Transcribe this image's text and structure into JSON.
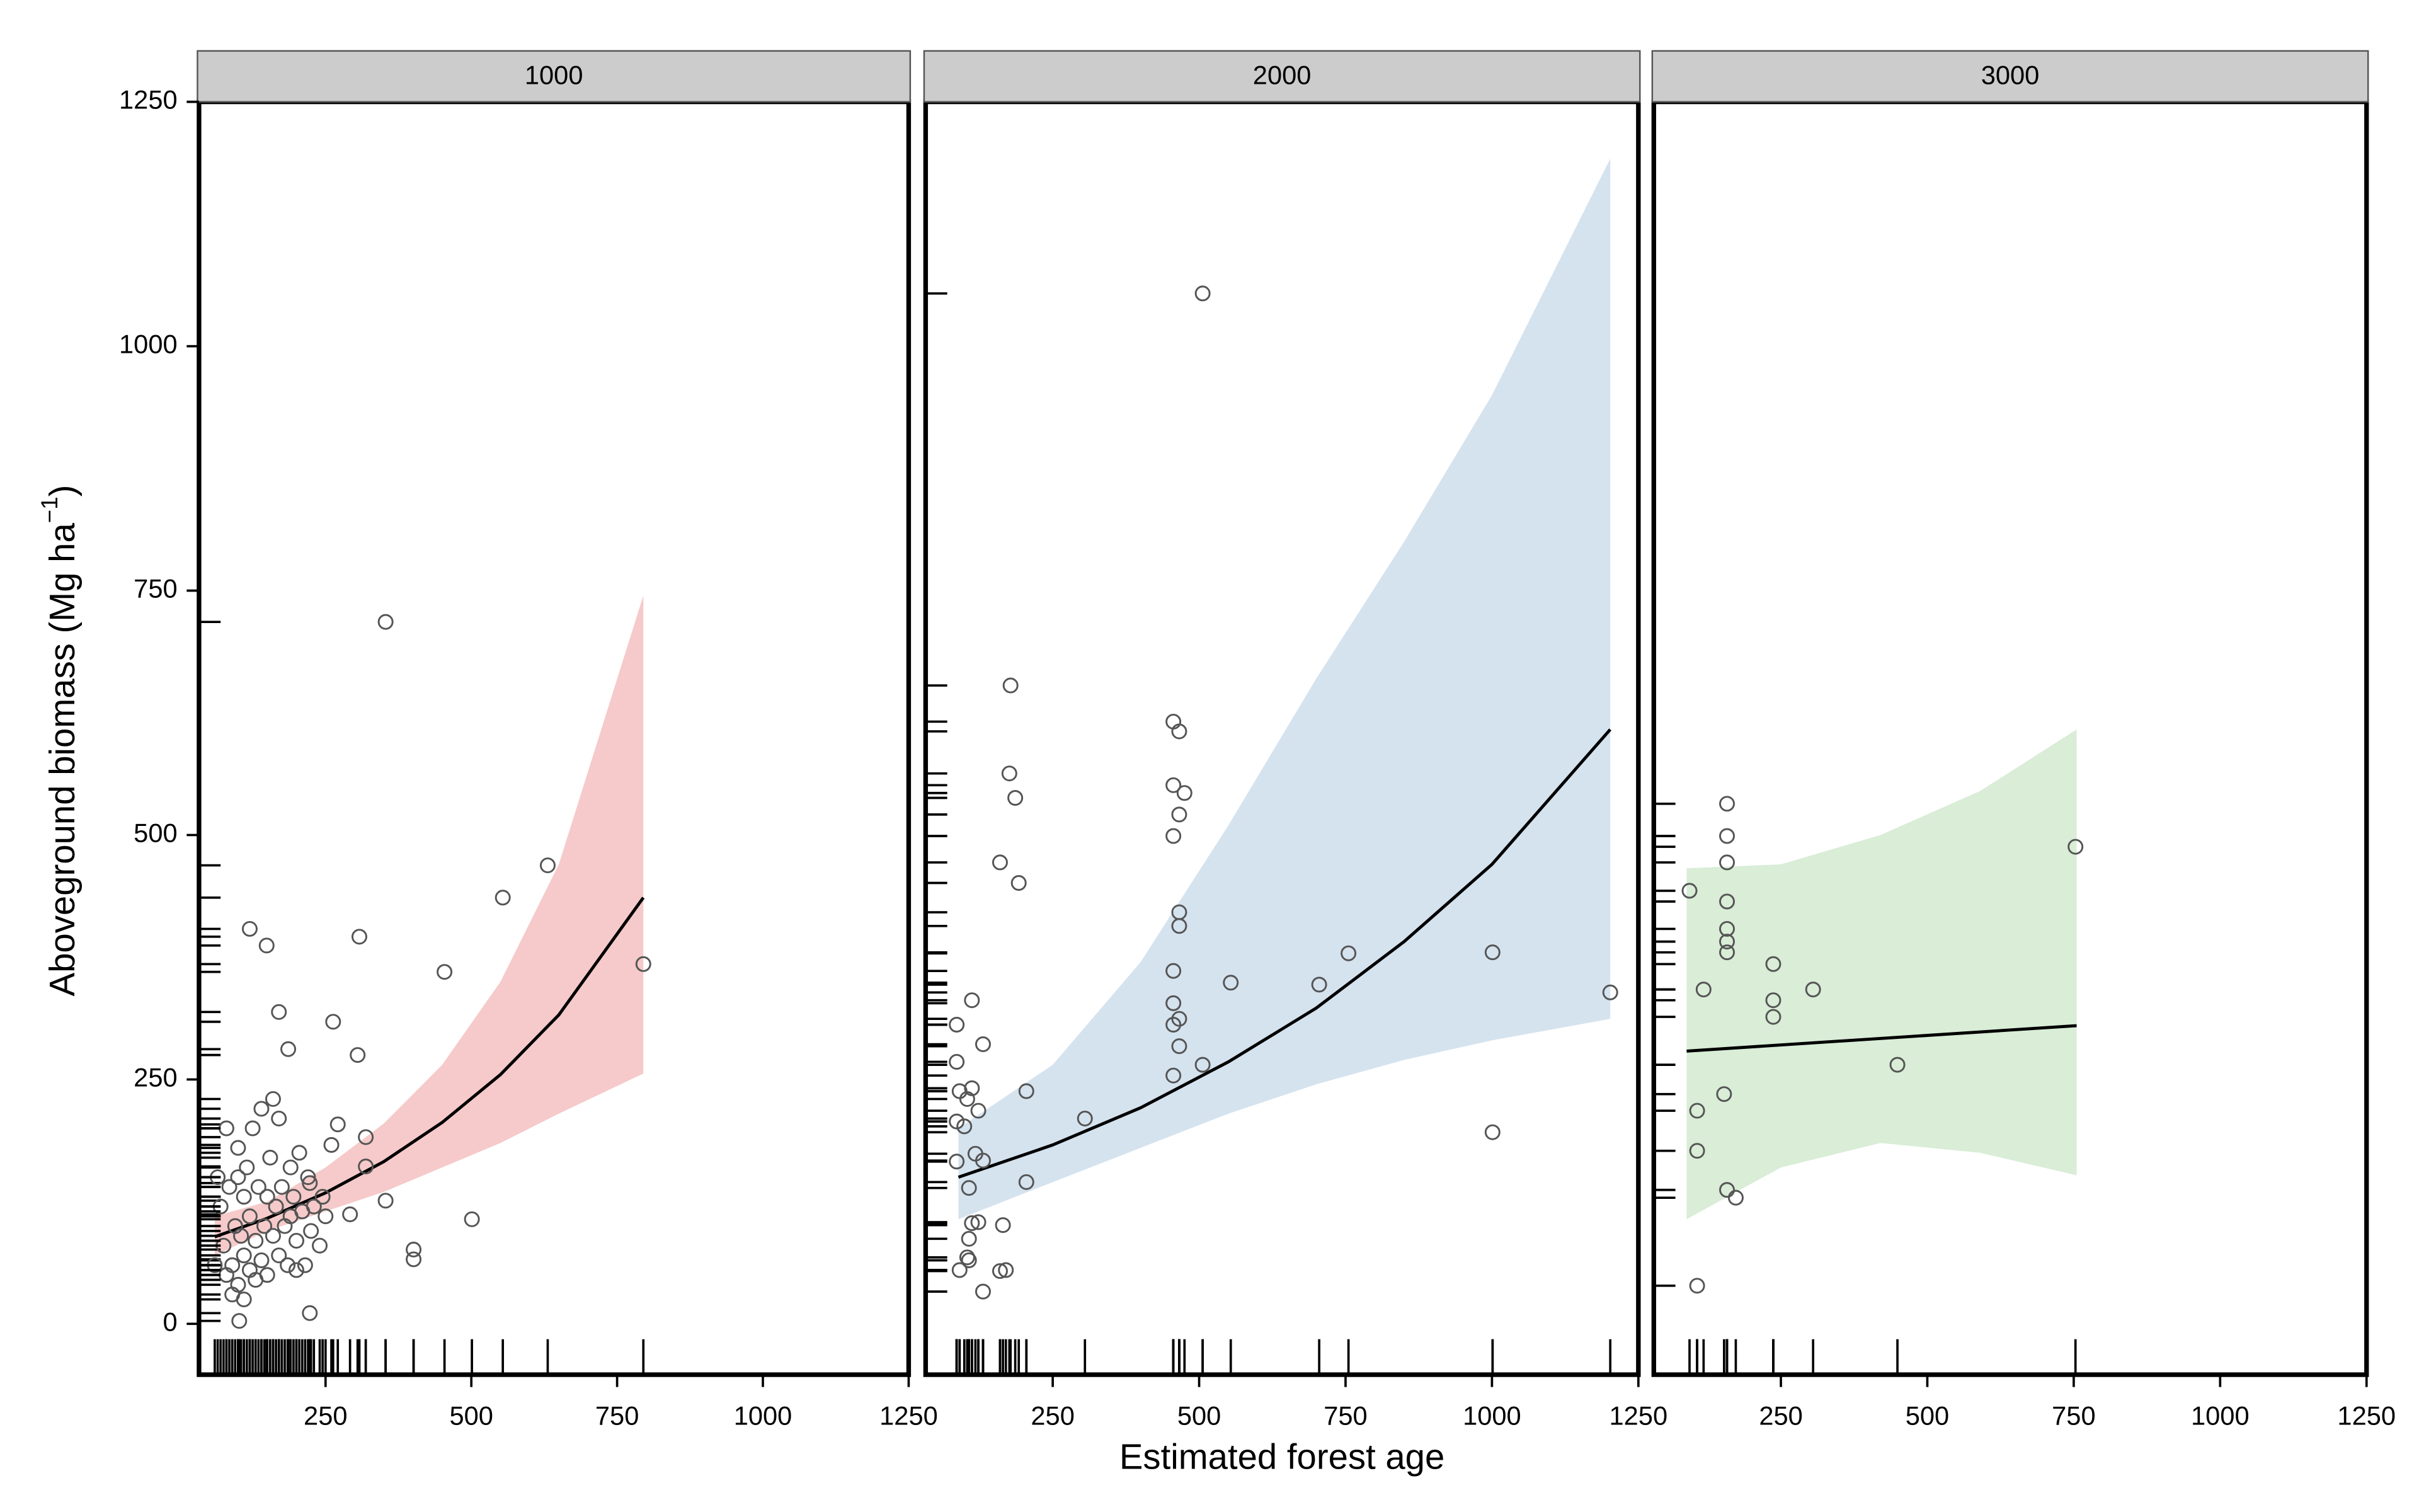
{
  "chart_data": {
    "type": "scatter",
    "x_label": "Estimated forest age",
    "y_label": "Aboveground biomass (Mg ha",
    "y_label_sup": "−1",
    "y_label_end": ")",
    "xlim": [
      33,
      1250
    ],
    "ylim": [
      -52,
      1250
    ],
    "xticks": [
      250,
      500,
      750,
      1000,
      1250
    ],
    "yticks": [
      0,
      250,
      500,
      750,
      1000,
      1250
    ],
    "rug": true,
    "point_color": "#555555",
    "line_color": "#000000",
    "panels": [
      {
        "title": "1000",
        "band_color": "#f6caca",
        "points": {
          "x": [
            353,
            631,
            554,
            795,
            308,
            454,
            120,
            149,
            170,
            263,
            305,
            186,
            501,
            401,
            401,
            353,
            319,
            319,
            292,
            271,
            260,
            223,
            223,
            102,
            70,
            75,
            80,
            85,
            90,
            95,
            100,
            100,
            105,
            110,
            110,
            115,
            120,
            120,
            125,
            130,
            135,
            140,
            140,
            145,
            150,
            150,
            155,
            160,
            165,
            170,
            170,
            175,
            180,
            185,
            190,
            195,
            200,
            205,
            210,
            215,
            220,
            225,
            230,
            240,
            245,
            80,
            90,
            100,
            130,
            160,
            60,
            65,
            110,
            190,
            200,
            250
          ],
          "y": [
            718,
            469,
            436,
            368,
            396,
            360,
            404,
            387,
            319,
            309,
            275,
            281,
            107,
            76,
            66,
            126,
            161,
            191,
            112,
            204,
            183,
            144,
            11,
            3,
            120,
            80,
            50,
            140,
            60,
            100,
            180,
            40,
            90,
            130,
            70,
            160,
            55,
            110,
            200,
            85,
            140,
            65,
            220,
            100,
            130,
            50,
            170,
            90,
            120,
            210,
            70,
            140,
            100,
            60,
            160,
            130,
            85,
            175,
            115,
            60,
            150,
            95,
            120,
            80,
            130,
            200,
            30,
            150,
            45,
            230,
            60,
            150,
            25,
            110,
            55,
            110
          ]
        },
        "fit": {
          "x": [
            60,
            150,
            250,
            350,
            450,
            550,
            650,
            795
          ],
          "y": [
            89,
            108,
            134,
            166,
            206,
            255,
            316,
            436
          ]
        },
        "band": {
          "x": [
            60,
            150,
            250,
            350,
            450,
            550,
            650,
            795
          ],
          "lower": [
            70,
            95,
            115,
            135,
            160,
            185,
            215,
            256
          ],
          "upper": [
            110,
            125,
            160,
            205,
            265,
            350,
            470,
            745
          ]
        }
      },
      {
        "title": "2000",
        "band_color": "#d5e3ef",
        "points": {
          "x": [
            506,
            178,
            176,
            186,
            160,
            192,
            456,
            466,
            456,
            475,
            466,
            456,
            466,
            466,
            456,
            456,
            466,
            456,
            466,
            506,
            456,
            554,
            705,
            755,
            1001,
            1001,
            1202,
            305,
            205,
            205,
            165,
            160,
            170,
            131,
            112,
            86,
            86,
            131,
            91,
            104,
            112,
            99,
            123,
            86,
            118,
            131,
            107,
            112,
            123,
            107,
            104,
            91,
            107,
            86
          ],
          "y": [
            1054,
            653,
            563,
            538,
            472,
            451,
            616,
            606,
            551,
            543,
            521,
            499,
            421,
            407,
            361,
            328,
            312,
            306,
            284,
            265,
            254,
            349,
            347,
            379,
            380,
            196,
            339,
            210,
            238,
            145,
            101,
            54,
            55,
            33,
            331,
            306,
            268,
            286,
            238,
            230,
            241,
            202,
            218,
            166,
            174,
            167,
            139,
            103,
            104,
            87,
            68,
            55,
            65,
            207
          ]
        },
        "fit": {
          "x": [
            89,
            250,
            400,
            550,
            700,
            850,
            1000,
            1202
          ],
          "y": [
            150,
            183,
            221,
            268,
            323,
            391,
            470,
            608
          ]
        },
        "band": {
          "x": [
            89,
            250,
            400,
            550,
            700,
            850,
            1000,
            1202
          ],
          "lower": [
            107,
            145,
            180,
            215,
            245,
            270,
            290,
            312
          ],
          "upper": [
            200,
            265,
            370,
            510,
            660,
            800,
            950,
            1192
          ]
        }
      },
      {
        "title": "3000",
        "band_color": "#d9edd7",
        "points": {
          "x": [
            94,
            118,
            158,
            158,
            158,
            158,
            158,
            158,
            158,
            153,
            107,
            107,
            107,
            158,
            173,
            237,
            237,
            237,
            305,
            449,
            753
          ],
          "y": [
            443,
            342,
            532,
            499,
            472,
            432,
            404,
            391,
            380,
            235,
            218,
            177,
            39,
            137,
            129,
            368,
            331,
            314,
            342,
            265,
            488
          ]
        },
        "fit": {
          "x": [
            89,
            755
          ],
          "y": [
            279,
            305
          ]
        },
        "band": {
          "x": [
            89,
            250,
            420,
            590,
            755
          ],
          "lower": [
            107,
            160,
            185,
            175,
            152
          ],
          "upper": [
            466,
            470,
            500,
            545,
            608
          ]
        }
      }
    ]
  }
}
